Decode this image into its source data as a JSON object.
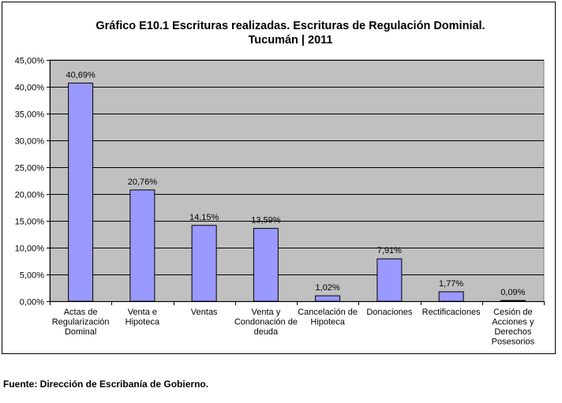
{
  "chart_data": {
    "type": "bar",
    "title_lines": [
      "Gráfico E10.1 Escrituras realizadas. Escrituras de Regulación Dominial.",
      "Tucumán | 2011"
    ],
    "categories": [
      [
        "Actas de",
        "Regularización",
        "Dominal"
      ],
      [
        "Venta e",
        "Hipoteca"
      ],
      [
        "Ventas"
      ],
      [
        "Venta y",
        "Condonación de",
        "deuda"
      ],
      [
        "Cancelación de",
        "Hipoteca"
      ],
      [
        "Donaciones"
      ],
      [
        "Rectificaciones"
      ],
      [
        "Cesión de",
        "Acciones y",
        "Derechos",
        "Posesorios"
      ]
    ],
    "values": [
      40.69,
      20.76,
      14.15,
      13.59,
      1.02,
      7.91,
      1.77,
      0.09
    ],
    "data_labels": [
      "40,69%",
      "20,76%",
      "14,15%",
      "13,59%",
      "1,02%",
      "7,91%",
      "1,77%",
      "0,09%"
    ],
    "ylim": [
      0,
      45
    ],
    "y_ticks": [
      "0,00%",
      "5,00%",
      "10,00%",
      "15,00%",
      "20,00%",
      "25,00%",
      "30,00%",
      "35,00%",
      "40,00%",
      "45,00%"
    ],
    "grid": true,
    "xlabel": "",
    "ylabel": "",
    "colors": {
      "plot_background": "#c0c0c0",
      "bar_fill": "#9999ff",
      "bar_stroke": "#000000",
      "gridline": "#000000"
    }
  },
  "source_note": "Fuente: Dirección de Escribanía de Gobierno."
}
